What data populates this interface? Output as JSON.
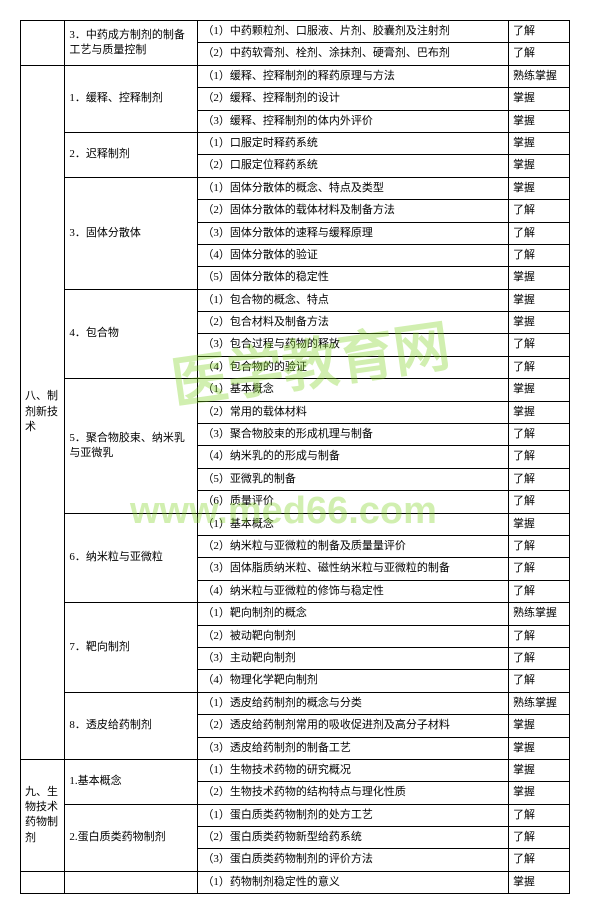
{
  "watermarks": {
    "cn": "医学教育网",
    "en": "www.med66.com"
  },
  "table": {
    "sections": [
      {
        "col1": "",
        "subs": [
          {
            "col2": "3．中药成方制剂的制备工艺与质量控制",
            "rows": [
              {
                "c3": "（1）中药颗粒剂、口服液、片剂、胶囊剂及注射剂",
                "c4": "了解"
              },
              {
                "c3": "（2）中药软膏剂、栓剂、涂抹剂、硬膏剂、巴布剂",
                "c4": "了解"
              }
            ]
          }
        ]
      },
      {
        "col1": "八、制剂新技术",
        "subs": [
          {
            "col2": "1．缓释、控释制剂",
            "rows": [
              {
                "c3": "（1）缓释、控释制剂的释药原理与方法",
                "c4": "熟练掌握"
              },
              {
                "c3": "（2）缓释、控释制剂的设计",
                "c4": "掌握"
              },
              {
                "c3": "（3）缓释、控释制剂的体内外评价",
                "c4": "掌握"
              }
            ]
          },
          {
            "col2": "2．迟释制剂",
            "rows": [
              {
                "c3": "（1）口服定时释药系统",
                "c4": "掌握"
              },
              {
                "c3": "（2）口服定位释药系统",
                "c4": "掌握"
              }
            ]
          },
          {
            "col2": "3．固体分散体",
            "rows": [
              {
                "c3": "（1）固体分散体的概念、特点及类型",
                "c4": "掌握"
              },
              {
                "c3": "（2）固体分散体的载体材料及制备方法",
                "c4": "了解"
              },
              {
                "c3": "（3）固体分散体的速释与缓释原理",
                "c4": "了解"
              },
              {
                "c3": "（4）固体分散体的验证",
                "c4": "了解"
              },
              {
                "c3": "（5）固体分散体的稳定性",
                "c4": "掌握"
              }
            ]
          },
          {
            "col2": "4．包合物",
            "rows": [
              {
                "c3": "（1）包合物的概念、特点",
                "c4": "掌握"
              },
              {
                "c3": "（2）包合材料及制备方法",
                "c4": "掌握"
              },
              {
                "c3": "（3）包合过程与药物的释放",
                "c4": "了解"
              },
              {
                "c3": "（4）包合物的的验证",
                "c4": "了解"
              }
            ]
          },
          {
            "col2": "5．聚合物胶束、纳米乳与亚微乳",
            "rows": [
              {
                "c3": "（1）基本概念",
                "c4": "掌握"
              },
              {
                "c3": "（2）常用的载体材料",
                "c4": "掌握"
              },
              {
                "c3": "（3）聚合物胶束的形成机理与制备",
                "c4": "了解"
              },
              {
                "c3": "（4）纳米乳的的形成与制备",
                "c4": "了解"
              },
              {
                "c3": "（5）亚微乳的制备",
                "c4": "了解"
              },
              {
                "c3": "（6）质量评价",
                "c4": "了解"
              }
            ]
          },
          {
            "col2": "6．纳米粒与亚微粒",
            "rows": [
              {
                "c3": "（1）基本概念",
                "c4": "掌握"
              },
              {
                "c3": "（2）纳米粒与亚微粒的制备及质量量评价",
                "c4": "了解"
              },
              {
                "c3": "（3）固体脂质纳米粒、磁性纳米粒与亚微粒的制备",
                "c4": "了解"
              },
              {
                "c3": "（4）纳米粒与亚微粒的修饰与稳定性",
                "c4": "了解"
              }
            ]
          },
          {
            "col2": "7．靶向制剂",
            "rows": [
              {
                "c3": "（1）靶向制剂的概念",
                "c4": "熟练掌握"
              },
              {
                "c3": "（2）被动靶向制剂",
                "c4": "了解"
              },
              {
                "c3": "（3）主动靶向制剂",
                "c4": "了解"
              },
              {
                "c3": "（4）物理化学靶向制剂",
                "c4": "了解"
              }
            ]
          },
          {
            "col2": "8．透皮给药制剂",
            "rows": [
              {
                "c3": "（1）透皮给药制剂的概念与分类",
                "c4": "熟练掌握"
              },
              {
                "c3": "（2）透皮给药制剂常用的吸收促进剂及高分子材料",
                "c4": "掌握"
              },
              {
                "c3": "（3）透皮给药制剂的制备工艺",
                "c4": "掌握"
              }
            ]
          }
        ]
      },
      {
        "col1": "九、生物技术药物制剂",
        "subs": [
          {
            "col2": "1.基本概念",
            "rows": [
              {
                "c3": "（1）生物技术药物的研究概况",
                "c4": "掌握"
              },
              {
                "c3": "（2）生物技术药物的结构特点与理化性质",
                "c4": "掌握"
              }
            ]
          },
          {
            "col2": "2.蛋白质类药物制剂",
            "rows": [
              {
                "c3": "（1）蛋白质类药物制剂的处方工艺",
                "c4": "了解"
              },
              {
                "c3": "（2）蛋白质类药物新型给药系统",
                "c4": "了解"
              },
              {
                "c3": "（3）蛋白质类药物制剂的评价方法",
                "c4": "了解"
              }
            ]
          }
        ]
      },
      {
        "col1": "",
        "subs": [
          {
            "col2": "",
            "rows": [
              {
                "c3": "（1）药物制剂稳定性的意义",
                "c4": "掌握"
              }
            ]
          }
        ]
      }
    ]
  }
}
